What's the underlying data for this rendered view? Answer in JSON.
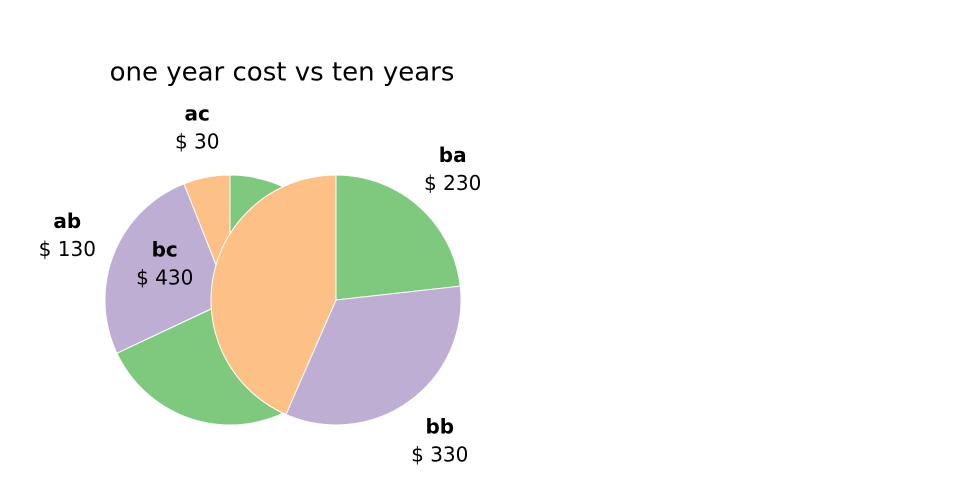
{
  "chart_data": [
    {
      "type": "pie",
      "title": "one year cost vs ten years",
      "categories": [
        null,
        "ab",
        "ac"
      ],
      "values": [
        340,
        130,
        30
      ],
      "value_labels": [
        null,
        "$ 130",
        "$ 30"
      ],
      "colors": [
        "#7fc97f",
        "#beaed4",
        "#fdc086"
      ]
    },
    {
      "type": "pie",
      "categories": [
        "ba",
        "bb",
        "bc"
      ],
      "values": [
        230,
        330,
        430
      ],
      "value_labels": [
        "$ 230",
        "$ 330",
        "$ 430"
      ],
      "colors": [
        "#7fc97f",
        "#beaed4",
        "#fdc086"
      ]
    }
  ]
}
